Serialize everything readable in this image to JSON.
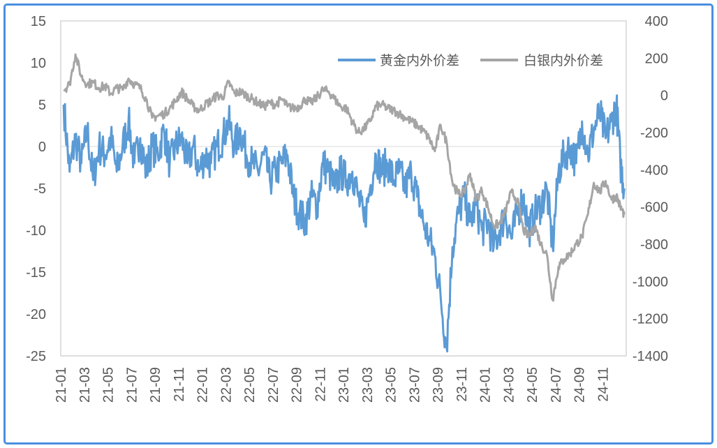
{
  "chart_data": {
    "type": "line",
    "title": "",
    "xlabel": "",
    "ylabel": "",
    "ylabel_right": "",
    "x_tick_labels": [
      "21-01",
      "21-03",
      "21-05",
      "21-07",
      "21-09",
      "21-11",
      "22-01",
      "22-03",
      "22-05",
      "22-07",
      "22-09",
      "22-11",
      "23-01",
      "23-03",
      "23-05",
      "23-07",
      "23-09",
      "23-11",
      "24-01",
      "24-03",
      "24-05",
      "24-07",
      "24-09",
      "24-11"
    ],
    "ylim_left": [
      -25,
      15
    ],
    "yticks_left": [
      "15",
      "10",
      "5",
      "0",
      "-5",
      "-10",
      "-15",
      "-20",
      "-25"
    ],
    "ylim_right": [
      -1400,
      400
    ],
    "yticks_right": [
      "400",
      "200",
      "0",
      "-200",
      "-400",
      "-600",
      "-800",
      "-1000",
      "-1200",
      "-1400"
    ],
    "grid": false,
    "zero_line_left": 0,
    "legend_position": "top-right",
    "series": [
      {
        "name": "黄金内外价差",
        "axis": "left",
        "color": "#5b9bd5",
        "points": [
          [
            "21-01",
            5
          ],
          [
            "21-01",
            -3
          ],
          [
            "21-02",
            1
          ],
          [
            "21-02",
            -2
          ],
          [
            "21-03",
            2
          ],
          [
            "21-03",
            -4
          ],
          [
            "21-04",
            0
          ],
          [
            "21-04",
            -1
          ],
          [
            "21-05",
            1
          ],
          [
            "21-05",
            -3
          ],
          [
            "21-06",
            0
          ],
          [
            "21-06",
            3
          ],
          [
            "21-07",
            -2
          ],
          [
            "21-07",
            1
          ],
          [
            "21-08",
            -3
          ],
          [
            "21-08",
            0
          ],
          [
            "21-09",
            -1
          ],
          [
            "21-09",
            2
          ],
          [
            "21-10",
            -2
          ],
          [
            "21-10",
            0
          ],
          [
            "21-11",
            1
          ],
          [
            "21-11",
            -2
          ],
          [
            "21-12",
            0
          ],
          [
            "21-12",
            -3
          ],
          [
            "22-01",
            -1
          ],
          [
            "22-01",
            -2
          ],
          [
            "22-02",
            0
          ],
          [
            "22-02",
            1
          ],
          [
            "22-03",
            3
          ],
          [
            "22-03",
            0
          ],
          [
            "22-04",
            2
          ],
          [
            "22-04",
            -1
          ],
          [
            "22-05",
            -2
          ],
          [
            "22-05",
            -3
          ],
          [
            "22-06",
            -1
          ],
          [
            "22-06",
            -4
          ],
          [
            "22-07",
            -3
          ],
          [
            "22-07",
            -2
          ],
          [
            "22-08",
            -1
          ],
          [
            "22-08",
            -6
          ],
          [
            "22-09",
            -8
          ],
          [
            "22-09",
            -9
          ],
          [
            "22-10",
            -6
          ],
          [
            "22-10",
            -7
          ],
          [
            "22-11",
            -2
          ],
          [
            "22-11",
            -3
          ],
          [
            "22-12",
            -5
          ],
          [
            "22-12",
            -3
          ],
          [
            "23-01",
            -4
          ],
          [
            "23-01",
            -3
          ],
          [
            "23-02",
            -6
          ],
          [
            "23-02",
            -9
          ],
          [
            "23-03",
            -5
          ],
          [
            "23-03",
            -1
          ],
          [
            "23-04",
            -3
          ],
          [
            "23-04",
            -2
          ],
          [
            "23-05",
            -4
          ],
          [
            "23-05",
            -3
          ],
          [
            "23-06",
            -5
          ],
          [
            "23-06",
            -3
          ],
          [
            "23-07",
            -6
          ],
          [
            "23-07",
            -9
          ],
          [
            "23-08",
            -11
          ],
          [
            "23-08",
            -13
          ],
          [
            "23-09",
            -18
          ],
          [
            "23-09",
            -24
          ],
          [
            "23-10",
            -12
          ],
          [
            "23-10",
            -8
          ],
          [
            "23-11",
            -6
          ],
          [
            "23-11",
            -9
          ],
          [
            "23-12",
            -7
          ],
          [
            "23-12",
            -10
          ],
          [
            "24-01",
            -9
          ],
          [
            "24-01",
            -12
          ],
          [
            "24-02",
            -10
          ],
          [
            "24-02",
            -8
          ],
          [
            "24-03",
            -11
          ],
          [
            "24-03",
            -8
          ],
          [
            "24-04",
            -6
          ],
          [
            "24-04",
            -10
          ],
          [
            "24-05",
            -8
          ],
          [
            "24-05",
            -7
          ],
          [
            "24-06",
            -5
          ],
          [
            "24-06",
            -12
          ],
          [
            "24-07",
            -3
          ],
          [
            "24-07",
            -1
          ],
          [
            "24-08",
            0
          ],
          [
            "24-08",
            -2
          ],
          [
            "24-09",
            3
          ],
          [
            "24-09",
            -1
          ],
          [
            "24-10",
            2
          ],
          [
            "24-10",
            4
          ],
          [
            "24-11",
            1
          ],
          [
            "24-11",
            3
          ],
          [
            "24-12",
            5
          ],
          [
            "24-12",
            -2
          ],
          [
            "24-12",
            -5
          ]
        ]
      },
      {
        "name": "白银内外价差",
        "axis": "right",
        "color": "#a5a5a5",
        "points": [
          [
            "21-01",
            30
          ],
          [
            "21-01",
            60
          ],
          [
            "21-02",
            220
          ],
          [
            "21-02",
            100
          ],
          [
            "21-03",
            60
          ],
          [
            "21-03",
            70
          ],
          [
            "21-04",
            40
          ],
          [
            "21-04",
            50
          ],
          [
            "21-05",
            10
          ],
          [
            "21-05",
            40
          ],
          [
            "21-06",
            30
          ],
          [
            "21-06",
            90
          ],
          [
            "21-07",
            60
          ],
          [
            "21-07",
            40
          ],
          [
            "21-08",
            -20
          ],
          [
            "21-08",
            -120
          ],
          [
            "21-09",
            -110
          ],
          [
            "21-09",
            -100
          ],
          [
            "21-10",
            -70
          ],
          [
            "21-10",
            -30
          ],
          [
            "21-11",
            20
          ],
          [
            "21-11",
            -20
          ],
          [
            "21-12",
            -60
          ],
          [
            "21-12",
            -80
          ],
          [
            "22-01",
            -50
          ],
          [
            "22-01",
            -30
          ],
          [
            "22-02",
            0
          ],
          [
            "22-02",
            -10
          ],
          [
            "22-03",
            70
          ],
          [
            "22-03",
            10
          ],
          [
            "22-04",
            20
          ],
          [
            "22-04",
            0
          ],
          [
            "22-05",
            -20
          ],
          [
            "22-05",
            -40
          ],
          [
            "22-06",
            -60
          ],
          [
            "22-06",
            -40
          ],
          [
            "22-07",
            -50
          ],
          [
            "22-07",
            -20
          ],
          [
            "22-08",
            -60
          ],
          [
            "22-08",
            -70
          ],
          [
            "22-09",
            -60
          ],
          [
            "22-09",
            -20
          ],
          [
            "22-10",
            -40
          ],
          [
            "22-10",
            -10
          ],
          [
            "22-11",
            30
          ],
          [
            "22-11",
            20
          ],
          [
            "22-12",
            -20
          ],
          [
            "22-12",
            -60
          ],
          [
            "23-01",
            -70
          ],
          [
            "23-01",
            -140
          ],
          [
            "23-02",
            -200
          ],
          [
            "23-02",
            -180
          ],
          [
            "23-03",
            -140
          ],
          [
            "23-03",
            -60
          ],
          [
            "23-04",
            -50
          ],
          [
            "23-04",
            -70
          ],
          [
            "23-05",
            -80
          ],
          [
            "23-05",
            -100
          ],
          [
            "23-06",
            -120
          ],
          [
            "23-06",
            -140
          ],
          [
            "23-07",
            -160
          ],
          [
            "23-07",
            -190
          ],
          [
            "23-08",
            -230
          ],
          [
            "23-08",
            -300
          ],
          [
            "23-09",
            -160
          ],
          [
            "23-09",
            -250
          ],
          [
            "23-10",
            -470
          ],
          [
            "23-10",
            -530
          ],
          [
            "23-11",
            -520
          ],
          [
            "23-11",
            -420
          ],
          [
            "23-12",
            -560
          ],
          [
            "23-12",
            -510
          ],
          [
            "24-01",
            -600
          ],
          [
            "24-01",
            -700
          ],
          [
            "24-02",
            -690
          ],
          [
            "24-02",
            -620
          ],
          [
            "24-03",
            -520
          ],
          [
            "24-03",
            -560
          ],
          [
            "24-04",
            -720
          ],
          [
            "24-04",
            -760
          ],
          [
            "24-05",
            -700
          ],
          [
            "24-05",
            -800
          ],
          [
            "24-06",
            -850
          ],
          [
            "24-06",
            -1100
          ],
          [
            "24-07",
            -920
          ],
          [
            "24-07",
            -880
          ],
          [
            "24-08",
            -850
          ],
          [
            "24-08",
            -800
          ],
          [
            "24-09",
            -760
          ],
          [
            "24-09",
            -640
          ],
          [
            "24-10",
            -470
          ],
          [
            "24-10",
            -520
          ],
          [
            "24-11",
            -460
          ],
          [
            "24-11",
            -560
          ],
          [
            "24-12",
            -540
          ],
          [
            "24-12",
            -600
          ],
          [
            "24-12",
            -640
          ]
        ]
      }
    ]
  }
}
